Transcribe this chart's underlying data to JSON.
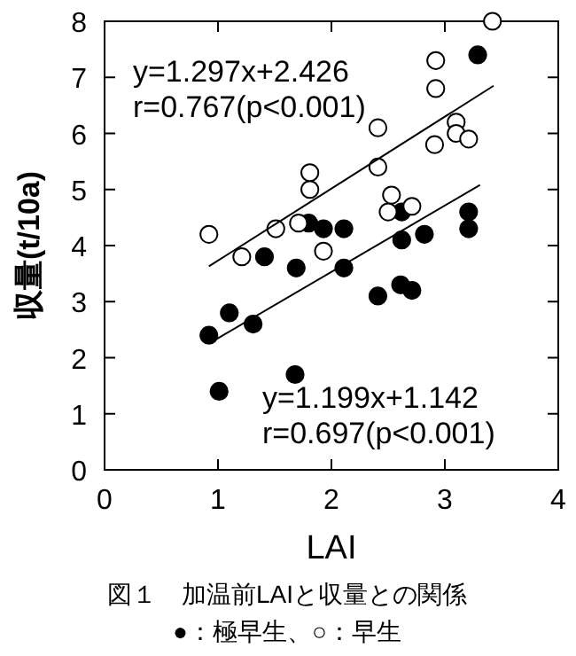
{
  "chart_data": {
    "type": "scatter",
    "xlabel": "LAI",
    "ylabel": "収量(t/10a)",
    "xlim": [
      0,
      4
    ],
    "ylim": [
      0,
      8
    ],
    "xticks": [
      0,
      1,
      2,
      3,
      4
    ],
    "yticks": [
      0,
      1,
      2,
      3,
      4,
      5,
      6,
      7,
      8
    ],
    "annotations": [
      "y=1.297x+2.426",
      "r=0.767(p<0.001)",
      "y=1.199x+1.142",
      "r=0.697(p<0.001)",
      "図１　加温前LAIと収量との関係",
      "●：極早生、○：早生"
    ],
    "series": [
      {
        "marker": "circle",
        "color": "#000000",
        "x": [
          0.92,
          1.01,
          1.1,
          1.31,
          1.41,
          1.68,
          1.69,
          1.8,
          1.93,
          2.11,
          2.11,
          2.41,
          2.61,
          2.71,
          2.62,
          2.62,
          2.82,
          3.21,
          3.21,
          3.29
        ],
        "values": [
          2.4,
          1.4,
          2.8,
          2.6,
          3.8,
          1.7,
          3.6,
          4.4,
          4.3,
          4.3,
          3.6,
          3.1,
          3.3,
          3.2,
          4.1,
          4.6,
          4.2,
          4.6,
          4.3,
          7.4
        ]
      },
      {
        "marker": "circle",
        "color": "#ffffff",
        "x": [
          0.92,
          1.21,
          1.51,
          1.71,
          1.81,
          1.81,
          1.93,
          2.41,
          2.41,
          2.5,
          2.53,
          2.71,
          2.91,
          2.92,
          2.92,
          3.1,
          3.1,
          3.21,
          3.42
        ],
        "values": [
          4.2,
          3.8,
          4.3,
          4.4,
          5.0,
          5.3,
          3.9,
          5.4,
          6.1,
          4.6,
          4.9,
          4.7,
          5.8,
          6.8,
          7.3,
          6.2,
          6.0,
          5.9,
          8.0
        ]
      },
      {
        "type": "line",
        "marker": "none",
        "color": "#000000",
        "x": [
          0.92,
          3.43
        ],
        "values": [
          3.63,
          6.85
        ]
      },
      {
        "type": "line",
        "marker": "none",
        "color": "#000000",
        "x": [
          0.96,
          3.31
        ],
        "values": [
          2.3,
          5.08
        ]
      }
    ]
  }
}
